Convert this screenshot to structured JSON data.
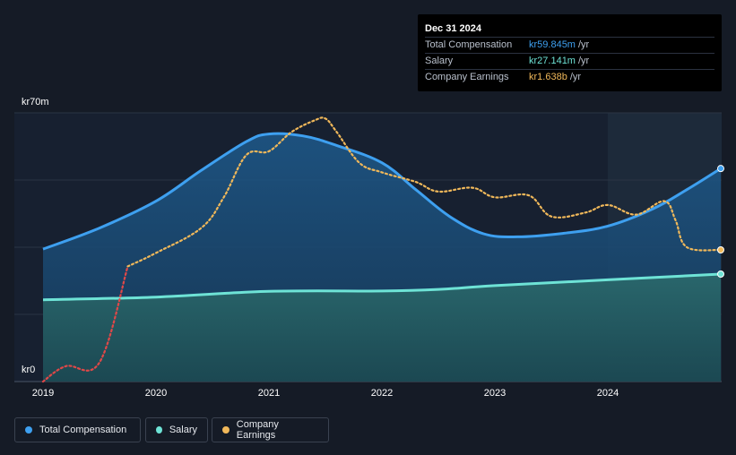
{
  "tooltip": {
    "date": "Dec 31 2024",
    "rows": [
      {
        "label": "Total Compensation",
        "value": "kr59.845m",
        "unit": "/yr",
        "color": "#3ea0f0"
      },
      {
        "label": "Salary",
        "value": "kr27.141m",
        "unit": "/yr",
        "color": "#6ee3d6"
      },
      {
        "label": "Company Earnings",
        "value": "kr1.638b",
        "unit": "/yr",
        "color": "#f0b85a"
      }
    ]
  },
  "legend": [
    {
      "label": "Total Compensation",
      "color": "#3ea0f0"
    },
    {
      "label": "Salary",
      "color": "#6ee3d6"
    },
    {
      "label": "Company Earnings",
      "color": "#f0b85a"
    }
  ],
  "chart_data": {
    "type": "line",
    "ylabel_top": "kr70m",
    "ylabel_bottom": "kr0",
    "ylim": [
      0,
      70
    ],
    "xlim": [
      2019.0,
      2025.0
    ],
    "x_ticks": [
      "2019",
      "2020",
      "2021",
      "2022",
      "2023",
      "2024"
    ],
    "x_tick_values": [
      2019.0,
      2020.0,
      2021.0,
      2022.0,
      2023.0,
      2024.0
    ],
    "grid": true,
    "legend_position": "bottom-left",
    "series": [
      {
        "name": "Total Compensation",
        "color": "#3ea0f0",
        "x": [
          2019.0,
          2019.5,
          2020.0,
          2020.4,
          2020.8,
          2021.0,
          2021.3,
          2021.6,
          2022.0,
          2022.3,
          2022.6,
          2022.9,
          2023.2,
          2023.6,
          2024.0,
          2024.4,
          2024.7,
          2025.0
        ],
        "y": [
          34.5,
          40.0,
          47.0,
          55.0,
          62.5,
          64.5,
          64.0,
          61.5,
          57.0,
          50.0,
          43.0,
          38.5,
          37.7,
          38.6,
          40.5,
          45.0,
          50.0,
          55.5
        ]
      },
      {
        "name": "Salary",
        "color": "#6ee3d6",
        "x": [
          2019.0,
          2020.0,
          2021.0,
          2022.0,
          2022.5,
          2023.0,
          2024.0,
          2025.0
        ],
        "y": [
          21.3,
          22.0,
          23.5,
          23.6,
          24.0,
          25.0,
          26.5,
          28.0
        ]
      },
      {
        "name": "Company Earnings",
        "color": "#f0b85a",
        "x": [
          2019.0,
          2019.2,
          2019.5,
          2019.75,
          2020.0,
          2020.4,
          2020.6,
          2020.8,
          2021.0,
          2021.2,
          2021.4,
          2021.5,
          2021.6,
          2021.8,
          2022.0,
          2022.3,
          2022.5,
          2022.8,
          2023.0,
          2023.3,
          2023.5,
          2023.8,
          2024.0,
          2024.25,
          2024.5,
          2024.6,
          2024.7,
          2025.0
        ],
        "y": [
          0.0,
          4.0,
          5.0,
          30.0,
          33.5,
          40.0,
          48.0,
          59.0,
          60.0,
          65.0,
          68.0,
          68.5,
          65.0,
          57.0,
          54.5,
          52.0,
          49.5,
          50.5,
          48.0,
          48.5,
          43.0,
          44.0,
          46.0,
          43.5,
          47.0,
          42.0,
          35.0,
          34.3
        ]
      }
    ]
  }
}
